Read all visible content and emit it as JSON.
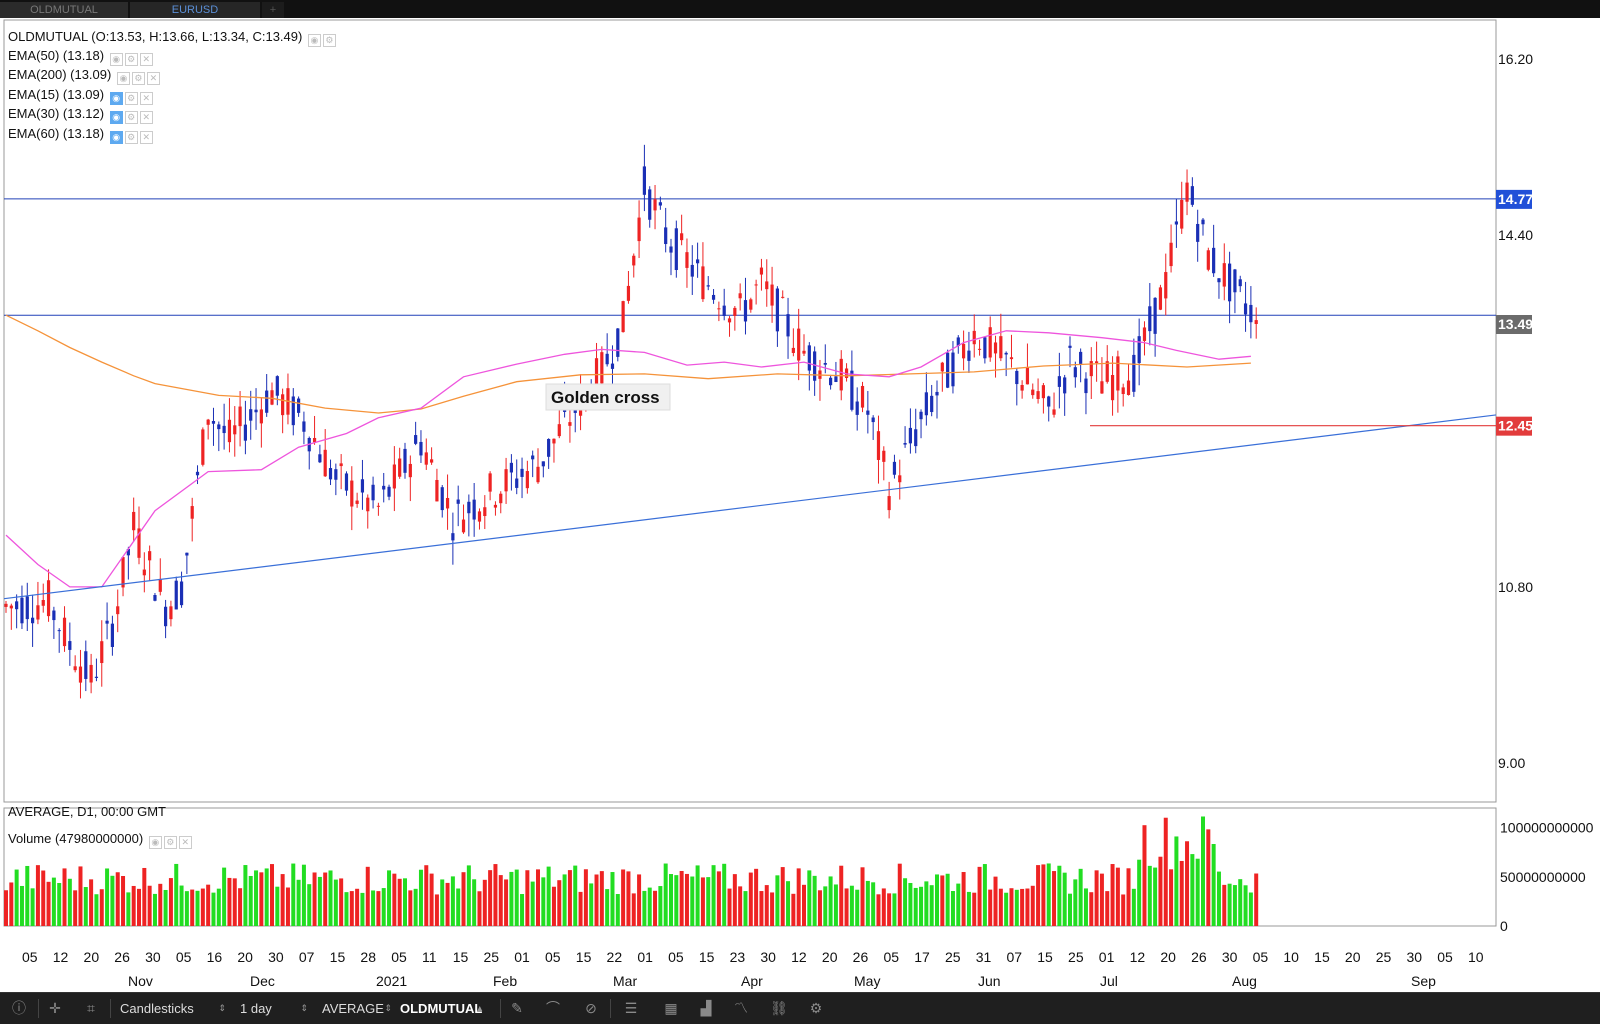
{
  "tabs": [
    {
      "label": "OLDMUTUAL"
    },
    {
      "label": "EURUSD"
    },
    {
      "label": "+"
    }
  ],
  "legend": {
    "ohlc": "OLDMUTUAL (O:13.53, H:13.66, L:13.34, C:13.49)",
    "emas": [
      {
        "label": "EMA(50) (13.18)",
        "active": false
      },
      {
        "label": "EMA(200) (13.09)",
        "active": false
      },
      {
        "label": "EMA(15) (13.09)",
        "active": true
      },
      {
        "label": "EMA(30) (13.12)",
        "active": true
      },
      {
        "label": "EMA(60) (13.18)",
        "active": true
      }
    ],
    "footer": "AVERAGE, D1, 00:00 GMT",
    "volume": "Volume (47980000000)"
  },
  "toolbar": {
    "chart_type": "Candlesticks",
    "timeframe": "1 day",
    "indicator": "AVERAGE",
    "symbol": "OLDMUTUAL"
  },
  "colors": {
    "up_candle": "#1a2fb5",
    "down_candle": "#ee2323",
    "ema_short": "#ee55dd",
    "ema_long": "#f5933a",
    "trendline": "#3a6fd8",
    "support": "#e23b3b",
    "vol_up": "#22dd22",
    "vol_down": "#ee2323"
  },
  "chart_data": [
    {
      "type": "candlestick",
      "title": "",
      "ylim": [
        8.6,
        16.6
      ],
      "y_ticks": [
        "16.20",
        "14.40",
        "10.80",
        "9.00"
      ],
      "x_day_labels": [
        "05",
        "12",
        "20",
        "26",
        "30",
        "05",
        "16",
        "20",
        "30",
        "07",
        "15",
        "28",
        "05",
        "11",
        "15",
        "25",
        "01",
        "05",
        "15",
        "22",
        "01",
        "05",
        "15",
        "23",
        "30",
        "12",
        "20",
        "26",
        "05",
        "17",
        "25",
        "31",
        "07",
        "15",
        "25",
        "01",
        "12",
        "20",
        "26",
        "30",
        "05",
        "10",
        "15",
        "20",
        "25",
        "30",
        "05",
        "10"
      ],
      "x_month_labels": [
        "Nov",
        "Dec",
        "2021",
        "Feb",
        "Mar",
        "Apr",
        "May",
        "Jun",
        "Jul",
        "Aug",
        "Sep"
      ],
      "price_tags": [
        {
          "label": "14.77",
          "value": 14.77,
          "color": "#2150d8"
        },
        {
          "label": "13.49",
          "value": 13.49,
          "color": "#6b6b6b"
        },
        {
          "label": "12.45",
          "value": 12.45,
          "color": "#e23b3b"
        }
      ],
      "resistance_levels": [
        14.77,
        13.58
      ],
      "support_level": {
        "value": 12.45,
        "from_date": "Jun 24",
        "to_date": "Sep 12"
      },
      "trendline": {
        "start": {
          "date": "Oct 02",
          "value": 10.68
        },
        "end": {
          "date": "Sep 12",
          "value": 12.56
        }
      },
      "annotations": [
        {
          "text": "Golden cross"
        }
      ],
      "last_close": 13.49,
      "ema_short_anchors": [
        [
          0,
          11.33
        ],
        [
          6,
          11.03
        ],
        [
          12,
          10.8
        ],
        [
          18,
          10.8
        ],
        [
          28,
          11.58
        ],
        [
          38,
          11.98
        ],
        [
          48,
          12.0
        ],
        [
          55,
          12.23
        ],
        [
          64,
          12.37
        ],
        [
          70,
          12.53
        ],
        [
          78,
          12.63
        ],
        [
          86,
          12.95
        ],
        [
          96,
          13.08
        ],
        [
          105,
          13.18
        ],
        [
          112,
          13.23
        ],
        [
          120,
          13.2
        ],
        [
          128,
          13.07
        ],
        [
          135,
          13.1
        ],
        [
          142,
          13.05
        ],
        [
          150,
          13.1
        ],
        [
          158,
          12.98
        ],
        [
          166,
          12.95
        ],
        [
          172,
          13.05
        ],
        [
          180,
          13.3
        ],
        [
          188,
          13.42
        ],
        [
          196,
          13.4
        ],
        [
          206,
          13.35
        ],
        [
          214,
          13.3
        ],
        [
          220,
          13.22
        ],
        [
          228,
          13.13
        ],
        [
          234,
          13.16
        ]
      ],
      "ema_long_anchors": [
        [
          0,
          13.58
        ],
        [
          6,
          13.42
        ],
        [
          12,
          13.25
        ],
        [
          18,
          13.1
        ],
        [
          24,
          12.96
        ],
        [
          28,
          12.88
        ],
        [
          40,
          12.76
        ],
        [
          50,
          12.73
        ],
        [
          60,
          12.63
        ],
        [
          70,
          12.58
        ],
        [
          78,
          12.62
        ],
        [
          86,
          12.75
        ],
        [
          96,
          12.9
        ],
        [
          108,
          12.97
        ],
        [
          120,
          12.98
        ],
        [
          132,
          12.93
        ],
        [
          145,
          12.98
        ],
        [
          158,
          12.96
        ],
        [
          170,
          12.98
        ],
        [
          182,
          13.0
        ],
        [
          195,
          13.06
        ],
        [
          208,
          13.09
        ],
        [
          222,
          13.05
        ],
        [
          234,
          13.09
        ]
      ]
    },
    {
      "type": "bar",
      "title": "Volume (47980000000)",
      "ylim": [
        0,
        120000000000
      ],
      "y_ticks": [
        "100000000000",
        "50000000000",
        "0"
      ]
    }
  ]
}
